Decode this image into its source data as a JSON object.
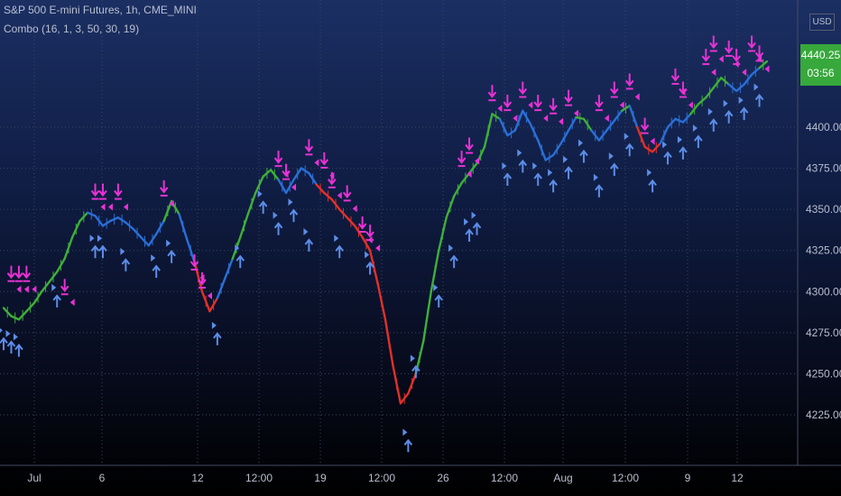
{
  "header": {
    "title": "S&P 500 E-mini Futures, 1h, CME_MINI",
    "indicator": "Combo (16, 1, 3, 50, 30, 19)"
  },
  "currency": "USD",
  "last_price": "4440.25",
  "countdown": "03:56",
  "colors": {
    "bull": "#3fae3a",
    "bear": "#e0312b",
    "neutral": "#2a6fd6",
    "sell_signal": "#e832d4",
    "buy_signal": "#5c8de8",
    "price_badge": "#37a83b"
  },
  "chart_data": {
    "type": "line",
    "title": "S&P 500 E-mini Futures, 1h, CME_MINI",
    "ylim": [
      4205,
      4470
    ],
    "y_ticks": [
      "4400.00",
      "4375.00",
      "4350.00",
      "4325.00",
      "4300.00",
      "4275.00",
      "4250.00",
      "4225.00"
    ],
    "x_ticks": [
      "Jul",
      "6",
      "12",
      "12:00",
      "19",
      "12:00",
      "26",
      "12:00",
      "Aug",
      "12:00",
      "9",
      "12"
    ],
    "grid": true,
    "series": [
      {
        "values": [
          4290,
          4285,
          4283,
          4288,
          4293,
          4300,
          4306,
          4312,
          4320,
          4333,
          4343,
          4348,
          4346,
          4340,
          4343,
          4345,
          4342,
          4338,
          4333,
          4328,
          4335,
          4343,
          4355,
          4347,
          4332,
          4318,
          4300,
          4288,
          4296,
          4308,
          4320,
          4333,
          4347,
          4360,
          4370,
          4374,
          4368,
          4360,
          4368,
          4375,
          4372,
          4365,
          4360,
          4356,
          4350,
          4345,
          4340,
          4333,
          4325,
          4305,
          4283,
          4255,
          4232,
          4238,
          4250,
          4270,
          4300,
          4325,
          4345,
          4358,
          4366,
          4372,
          4378,
          4388,
          4408,
          4405,
          4395,
          4398,
          4410,
          4402,
          4392,
          4380,
          4383,
          4390,
          4398,
          4406,
          4405,
          4398,
          4392,
          4398,
          4404,
          4410,
          4413,
          4400,
          4388,
          4385,
          4390,
          4400,
          4405,
          4403,
          4408,
          4414,
          4418,
          4424,
          4430,
          4426,
          4422,
          4426,
          4432,
          4436,
          4440
        ],
        "trend": [
          "g",
          "g",
          "g",
          "g",
          "g",
          "g",
          "g",
          "g",
          "g",
          "g",
          "g",
          "b",
          "b",
          "b",
          "b",
          "b",
          "b",
          "b",
          "b",
          "b",
          "b",
          "g",
          "g",
          "b",
          "b",
          "r",
          "r",
          "r",
          "b",
          "b",
          "g",
          "g",
          "g",
          "g",
          "g",
          "g",
          "b",
          "b",
          "b",
          "b",
          "b",
          "r",
          "r",
          "r",
          "r",
          "r",
          "r",
          "r",
          "r",
          "r",
          "r",
          "r",
          "r",
          "r",
          "g",
          "g",
          "g",
          "g",
          "g",
          "g",
          "g",
          "g",
          "g",
          "g",
          "g",
          "b",
          "b",
          "b",
          "b",
          "b",
          "b",
          "b",
          "b",
          "b",
          "b",
          "g",
          "g",
          "b",
          "b",
          "b",
          "b",
          "g",
          "b",
          "r",
          "r",
          "r",
          "b",
          "b",
          "b",
          "b",
          "g",
          "g",
          "g",
          "g",
          "g",
          "b",
          "b",
          "b",
          "b",
          "g",
          "g"
        ]
      }
    ],
    "sell_signals": [
      {
        "i": 1,
        "v": 4308
      },
      {
        "i": 2,
        "v": 4308
      },
      {
        "i": 3,
        "v": 4308
      },
      {
        "i": 8,
        "v": 4300
      },
      {
        "i": 12,
        "v": 4358
      },
      {
        "i": 13,
        "v": 4358
      },
      {
        "i": 15,
        "v": 4358
      },
      {
        "i": 21,
        "v": 4360
      },
      {
        "i": 25,
        "v": 4315
      },
      {
        "i": 26,
        "v": 4304
      },
      {
        "i": 36,
        "v": 4378
      },
      {
        "i": 37,
        "v": 4370
      },
      {
        "i": 40,
        "v": 4385
      },
      {
        "i": 42,
        "v": 4377
      },
      {
        "i": 43,
        "v": 4365
      },
      {
        "i": 45,
        "v": 4357
      },
      {
        "i": 47,
        "v": 4338
      },
      {
        "i": 48,
        "v": 4333
      },
      {
        "i": 60,
        "v": 4378
      },
      {
        "i": 61,
        "v": 4386
      },
      {
        "i": 64,
        "v": 4418
      },
      {
        "i": 66,
        "v": 4412
      },
      {
        "i": 68,
        "v": 4420
      },
      {
        "i": 70,
        "v": 4412
      },
      {
        "i": 72,
        "v": 4410
      },
      {
        "i": 74,
        "v": 4415
      },
      {
        "i": 78,
        "v": 4412
      },
      {
        "i": 80,
        "v": 4420
      },
      {
        "i": 82,
        "v": 4425
      },
      {
        "i": 84,
        "v": 4398
      },
      {
        "i": 88,
        "v": 4428
      },
      {
        "i": 89,
        "v": 4420
      },
      {
        "i": 92,
        "v": 4440
      },
      {
        "i": 93,
        "v": 4448
      },
      {
        "i": 95,
        "v": 4445
      },
      {
        "i": 96,
        "v": 4440
      },
      {
        "i": 98,
        "v": 4448
      },
      {
        "i": 99,
        "v": 4442
      }
    ],
    "buy_signals": [
      {
        "i": 0,
        "v": 4272
      },
      {
        "i": 1,
        "v": 4270
      },
      {
        "i": 2,
        "v": 4268
      },
      {
        "i": 7,
        "v": 4298
      },
      {
        "i": 12,
        "v": 4328
      },
      {
        "i": 13,
        "v": 4328
      },
      {
        "i": 16,
        "v": 4320
      },
      {
        "i": 20,
        "v": 4316
      },
      {
        "i": 22,
        "v": 4325
      },
      {
        "i": 28,
        "v": 4275
      },
      {
        "i": 31,
        "v": 4322
      },
      {
        "i": 34,
        "v": 4355
      },
      {
        "i": 36,
        "v": 4342
      },
      {
        "i": 38,
        "v": 4350
      },
      {
        "i": 40,
        "v": 4332
      },
      {
        "i": 44,
        "v": 4328
      },
      {
        "i": 48,
        "v": 4318
      },
      {
        "i": 53,
        "v": 4210
      },
      {
        "i": 54,
        "v": 4255
      },
      {
        "i": 57,
        "v": 4298
      },
      {
        "i": 59,
        "v": 4322
      },
      {
        "i": 61,
        "v": 4338
      },
      {
        "i": 62,
        "v": 4342
      },
      {
        "i": 66,
        "v": 4372
      },
      {
        "i": 68,
        "v": 4380
      },
      {
        "i": 70,
        "v": 4372
      },
      {
        "i": 72,
        "v": 4368
      },
      {
        "i": 74,
        "v": 4376
      },
      {
        "i": 76,
        "v": 4386
      },
      {
        "i": 78,
        "v": 4365
      },
      {
        "i": 80,
        "v": 4378
      },
      {
        "i": 82,
        "v": 4390
      },
      {
        "i": 85,
        "v": 4368
      },
      {
        "i": 87,
        "v": 4385
      },
      {
        "i": 89,
        "v": 4388
      },
      {
        "i": 91,
        "v": 4395
      },
      {
        "i": 93,
        "v": 4405
      },
      {
        "i": 95,
        "v": 4410
      },
      {
        "i": 97,
        "v": 4412
      },
      {
        "i": 99,
        "v": 4420
      }
    ]
  }
}
